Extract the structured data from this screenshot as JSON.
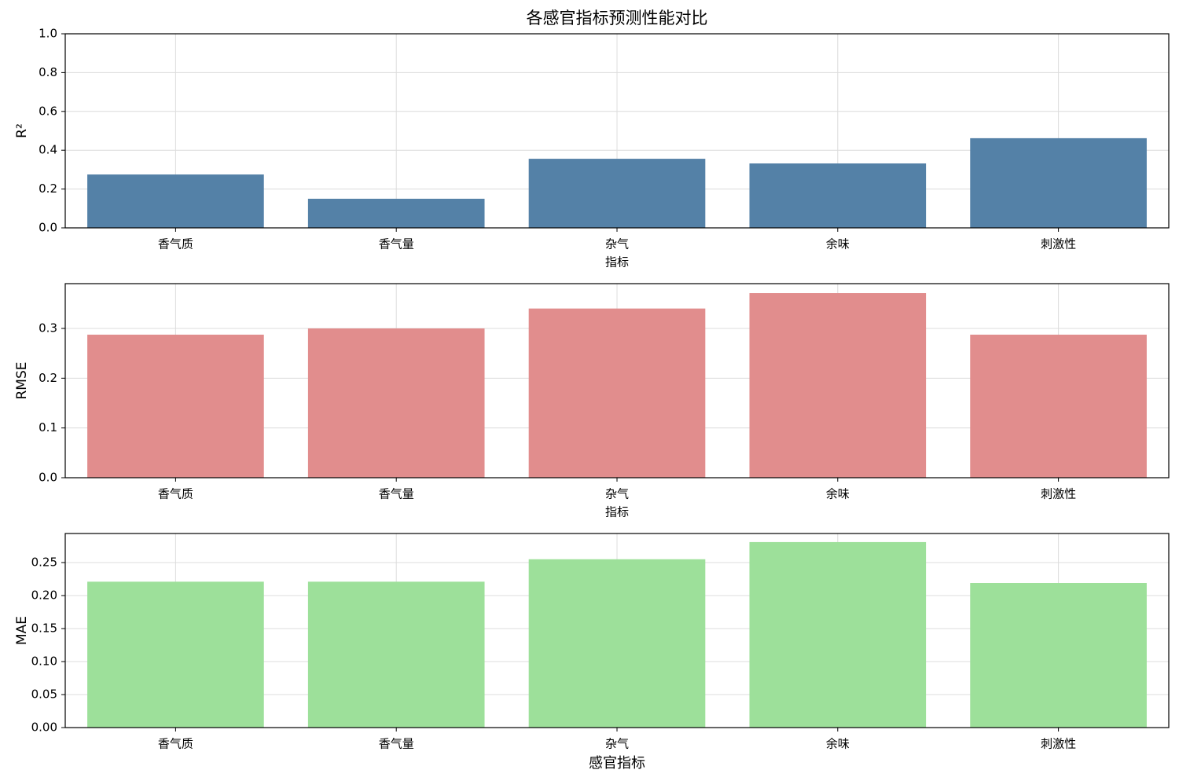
{
  "chart_data": [
    {
      "type": "bar",
      "title": "各感官指标预测性能对比",
      "xlabel": "指标",
      "ylabel": "R²",
      "categories": [
        "香气质",
        "香气量",
        "杂气",
        "余味",
        "刺激性"
      ],
      "values": [
        0.275,
        0.15,
        0.356,
        0.332,
        0.462
      ],
      "color": "#5481a7",
      "ylim": [
        0,
        1
      ],
      "yticks": [
        {
          "value": 0,
          "label": "0.0"
        },
        0.2,
        0.4,
        0.6,
        0.8,
        {
          "value": 1,
          "label": "1.0"
        }
      ],
      "grid": true
    },
    {
      "type": "bar",
      "xlabel": "指标",
      "ylabel": "RMSE",
      "categories": [
        "香气质",
        "香气量",
        "杂气",
        "余味",
        "刺激性"
      ],
      "values": [
        0.2875,
        0.3,
        0.34,
        0.371,
        0.2875
      ],
      "color": "#e18d8d",
      "ylim": [
        0,
        0.39
      ],
      "yticks": [
        {
          "value": 0,
          "label": "0.0"
        },
        0.1,
        0.2,
        0.3
      ],
      "grid": true
    },
    {
      "type": "bar",
      "xlabel": "感官指标",
      "ylabel": "MAE",
      "categories": [
        "香气质",
        "香气量",
        "杂气",
        "余味",
        "刺激性"
      ],
      "values": [
        0.221,
        0.221,
        0.255,
        0.281,
        0.219
      ],
      "color": "#9de09a",
      "ylim": [
        0,
        0.294
      ],
      "yticks": [
        {
          "value": 0,
          "label": "0.00"
        },
        0.05,
        {
          "value": 0.1,
          "label": "0.10"
        },
        0.15,
        {
          "value": 0.2,
          "label": "0.20"
        },
        0.25
      ],
      "grid": true
    }
  ]
}
